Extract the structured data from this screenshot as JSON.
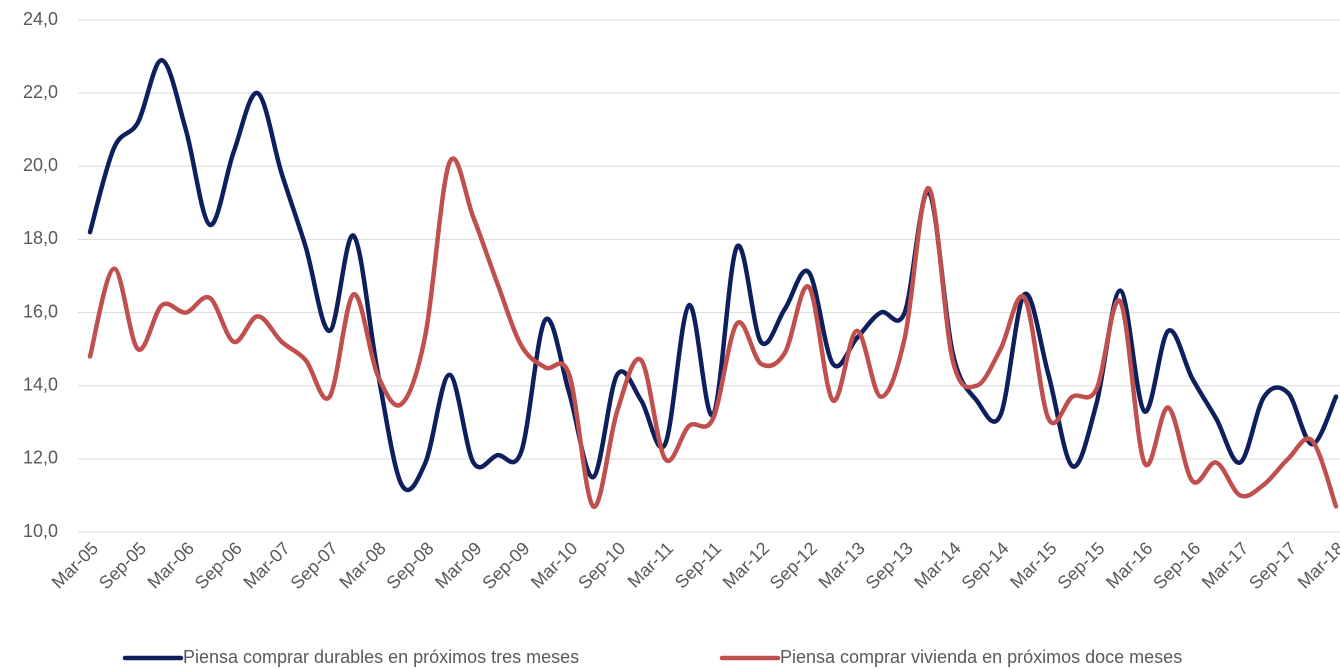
{
  "chart_data": {
    "type": "line",
    "categories": [
      "Mar-05",
      null,
      "Sep-05",
      null,
      "Mar-06",
      null,
      "Sep-06",
      null,
      "Mar-07",
      null,
      "Sep-07",
      null,
      "Mar-08",
      null,
      "Sep-08",
      null,
      "Mar-09",
      null,
      "Sep-09",
      null,
      "Mar-10",
      null,
      "Sep-10",
      null,
      "Mar-11",
      null,
      "Sep-11",
      null,
      "Mar-12",
      null,
      "Sep-12",
      null,
      "Mar-13",
      null,
      "Sep-13",
      null,
      "Mar-14",
      null,
      "Sep-14",
      null,
      "Mar-15",
      null,
      "Sep-15",
      null,
      "Mar-16",
      null,
      "Sep-16",
      null,
      "Mar-17",
      null,
      "Sep-17",
      null,
      "Mar-18"
    ],
    "series": [
      {
        "name": "Piensa comprar durables en próximos tres meses",
        "color": "#0d1f5c",
        "values": [
          18.2,
          20.5,
          21.2,
          22.9,
          21.0,
          18.4,
          20.4,
          22.0,
          19.8,
          17.8,
          15.5,
          18.1,
          14.4,
          11.3,
          11.9,
          14.3,
          11.9,
          12.1,
          12.2,
          15.8,
          13.8,
          11.5,
          14.3,
          13.6,
          12.4,
          16.2,
          13.2,
          17.8,
          15.2,
          16.1,
          17.1,
          14.6,
          15.3,
          16.0,
          16.0,
          19.3,
          14.9,
          13.6,
          13.2,
          16.5,
          14.3,
          11.8,
          13.5,
          16.6,
          13.3,
          15.5,
          14.2,
          13.1,
          11.9,
          13.7,
          13.8,
          12.4,
          13.7
        ]
      },
      {
        "name": "Piensa comprar vivienda en próximos doce meses",
        "color": "#c0504d",
        "values": [
          14.8,
          17.2,
          15.0,
          16.2,
          16.0,
          16.4,
          15.2,
          15.9,
          15.2,
          14.7,
          13.7,
          16.5,
          14.3,
          13.5,
          15.4,
          20.1,
          18.6,
          16.8,
          15.1,
          14.5,
          14.3,
          10.7,
          13.3,
          14.7,
          12.0,
          12.9,
          13.1,
          15.7,
          14.6,
          14.9,
          16.7,
          13.6,
          15.5,
          13.7,
          15.3,
          19.4,
          14.7,
          14.0,
          15.0,
          16.4,
          13.1,
          13.7,
          13.9,
          16.3,
          11.9,
          13.4,
          11.4,
          11.9,
          11.0,
          11.3,
          12.0,
          12.5,
          10.7
        ]
      }
    ],
    "ylim": [
      10,
      24
    ],
    "yticks": [
      {
        "value": 10,
        "label": "10,0"
      },
      {
        "value": 12,
        "label": "12,0"
      },
      {
        "value": 14,
        "label": "14,0"
      },
      {
        "value": 16,
        "label": "16,0"
      },
      {
        "value": 18,
        "label": "18,0"
      },
      {
        "value": 20,
        "label": "20,0"
      },
      {
        "value": 22,
        "label": "22,0"
      },
      {
        "value": 24,
        "label": "24,0"
      }
    ],
    "grid": true,
    "legend": "bottom"
  }
}
